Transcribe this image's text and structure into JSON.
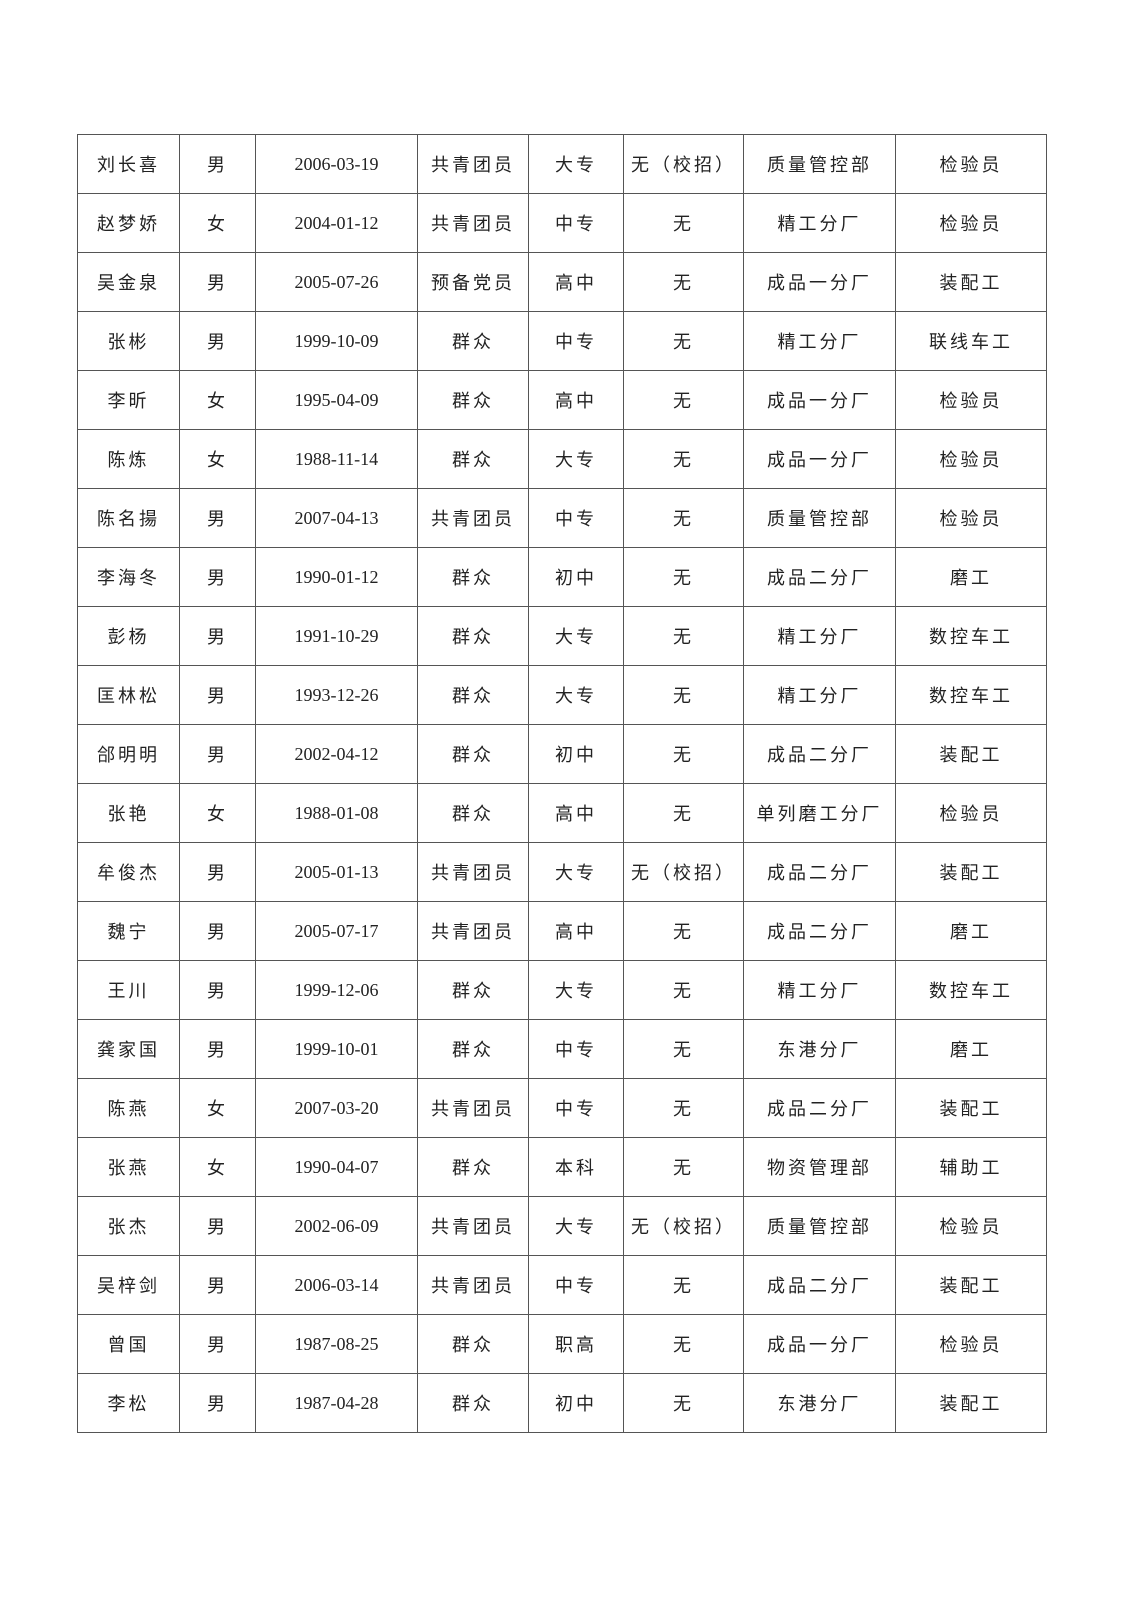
{
  "rows": [
    [
      "刘长喜",
      "男",
      "2006-03-19",
      "共青团员",
      "大专",
      "无（校招）",
      "质量管控部",
      "检验员"
    ],
    [
      "赵梦娇",
      "女",
      "2004-01-12",
      "共青团员",
      "中专",
      "无",
      "精工分厂",
      "检验员"
    ],
    [
      "吴金泉",
      "男",
      "2005-07-26",
      "预备党员",
      "高中",
      "无",
      "成品一分厂",
      "装配工"
    ],
    [
      "张彬",
      "男",
      "1999-10-09",
      "群众",
      "中专",
      "无",
      "精工分厂",
      "联线车工"
    ],
    [
      "李昕",
      "女",
      "1995-04-09",
      "群众",
      "高中",
      "无",
      "成品一分厂",
      "检验员"
    ],
    [
      "陈炼",
      "女",
      "1988-11-14",
      "群众",
      "大专",
      "无",
      "成品一分厂",
      "检验员"
    ],
    [
      "陈名揚",
      "男",
      "2007-04-13",
      "共青团员",
      "中专",
      "无",
      "质量管控部",
      "检验员"
    ],
    [
      "李海冬",
      "男",
      "1990-01-12",
      "群众",
      "初中",
      "无",
      "成品二分厂",
      "磨工"
    ],
    [
      "彭杨",
      "男",
      "1991-10-29",
      "群众",
      "大专",
      "无",
      "精工分厂",
      "数控车工"
    ],
    [
      "匡林松",
      "男",
      "1993-12-26",
      "群众",
      "大专",
      "无",
      "精工分厂",
      "数控车工"
    ],
    [
      "郃明明",
      "男",
      "2002-04-12",
      "群众",
      "初中",
      "无",
      "成品二分厂",
      "装配工"
    ],
    [
      "张艳",
      "女",
      "1988-01-08",
      "群众",
      "高中",
      "无",
      "单列磨工分厂",
      "检验员"
    ],
    [
      "牟俊杰",
      "男",
      "2005-01-13",
      "共青团员",
      "大专",
      "无（校招）",
      "成品二分厂",
      "装配工"
    ],
    [
      "魏宁",
      "男",
      "2005-07-17",
      "共青团员",
      "高中",
      "无",
      "成品二分厂",
      "磨工"
    ],
    [
      "王川",
      "男",
      "1999-12-06",
      "群众",
      "大专",
      "无",
      "精工分厂",
      "数控车工"
    ],
    [
      "龚家国",
      "男",
      "1999-10-01",
      "群众",
      "中专",
      "无",
      "东港分厂",
      "磨工"
    ],
    [
      "陈燕",
      "女",
      "2007-03-20",
      "共青团员",
      "中专",
      "无",
      "成品二分厂",
      "装配工"
    ],
    [
      "张燕",
      "女",
      "1990-04-07",
      "群众",
      "本科",
      "无",
      "物资管理部",
      "辅助工"
    ],
    [
      "张杰",
      "男",
      "2002-06-09",
      "共青团员",
      "大专",
      "无（校招）",
      "质量管控部",
      "检验员"
    ],
    [
      "吴梓剑",
      "男",
      "2006-03-14",
      "共青团员",
      "中专",
      "无",
      "成品二分厂",
      "装配工"
    ],
    [
      "曾国",
      "男",
      "1987-08-25",
      "群众",
      "职高",
      "无",
      "成品一分厂",
      "检验员"
    ],
    [
      "李松",
      "男",
      "1987-04-28",
      "群众",
      "初中",
      "无",
      "东港分厂",
      "装配工"
    ]
  ]
}
